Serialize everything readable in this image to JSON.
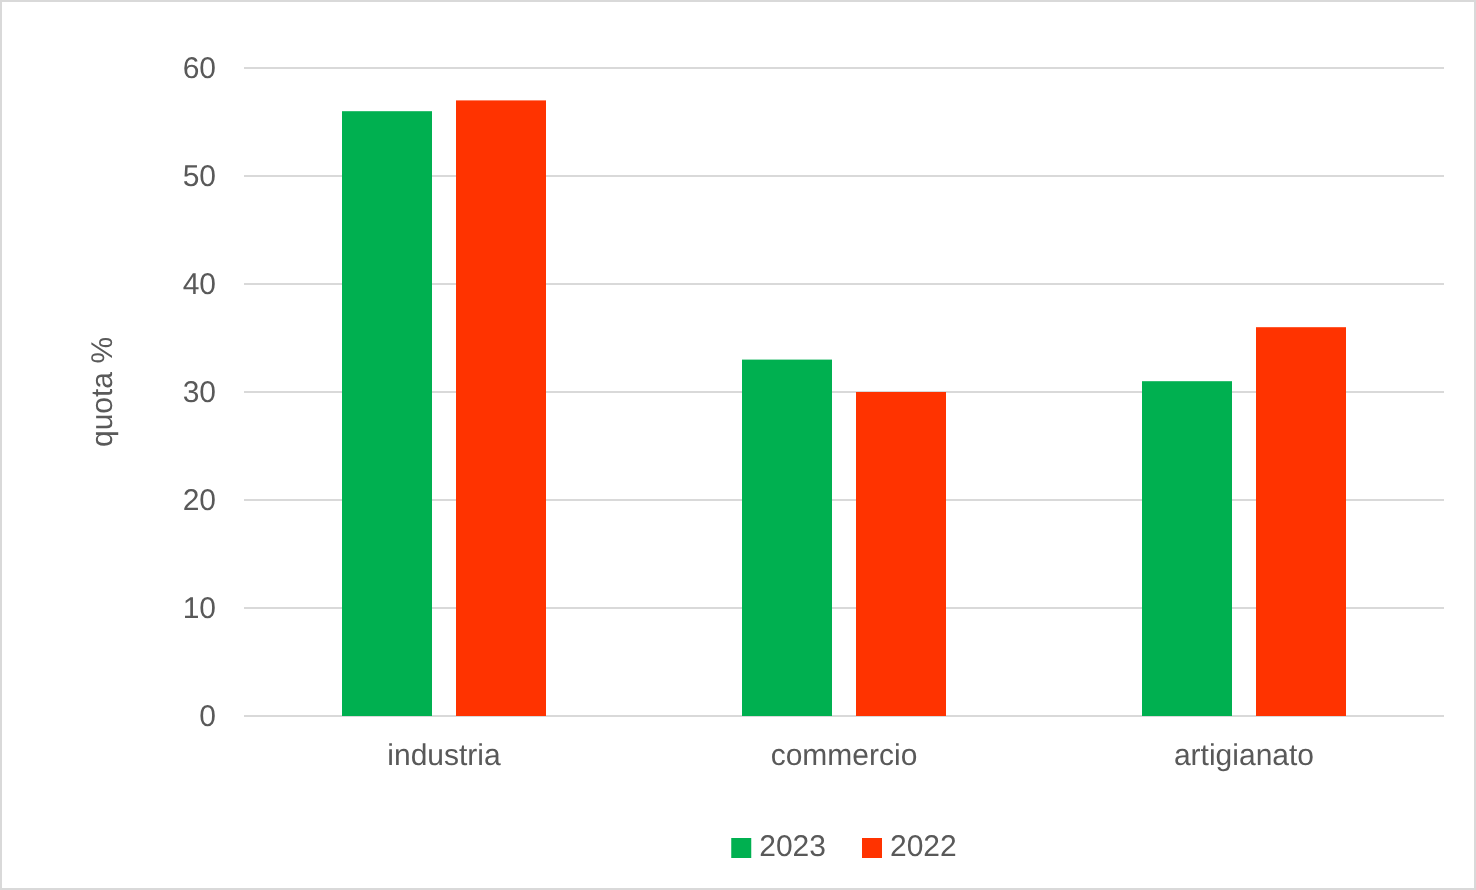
{
  "chart_data": {
    "type": "bar",
    "ylabel": "quota %",
    "categories": [
      "industria",
      "commercio",
      "artigianato"
    ],
    "series": [
      {
        "name": "2023",
        "color": "#00b050",
        "values": [
          56,
          33,
          31
        ]
      },
      {
        "name": "2022",
        "color": "#ff3300",
        "values": [
          57,
          30,
          36
        ]
      }
    ],
    "ylim": [
      0,
      60
    ],
    "yticks": [
      0,
      10,
      20,
      30,
      40,
      50,
      60
    ],
    "grid": "y",
    "legend": "bottom"
  }
}
